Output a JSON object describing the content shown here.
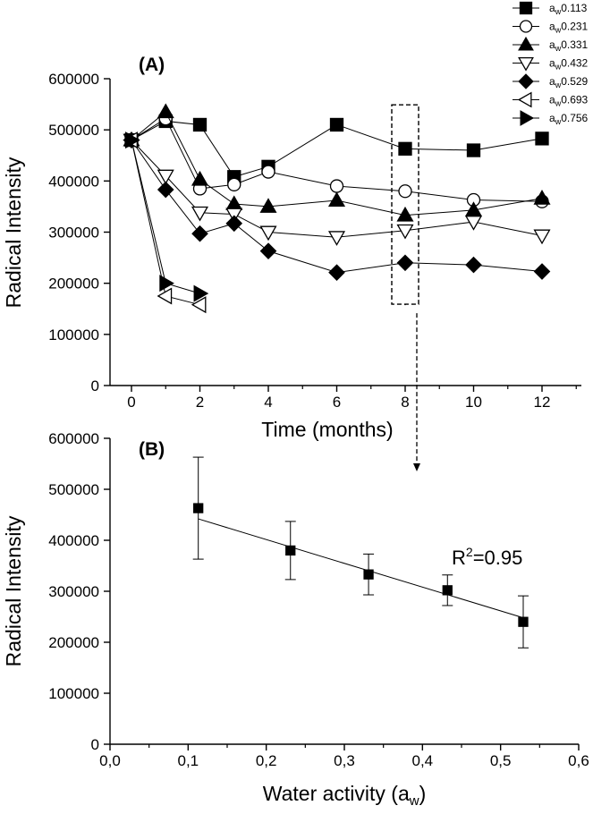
{
  "chart_data": [
    {
      "panel": "(A)",
      "type": "line",
      "xlabel": "Time (months)",
      "ylabel": "Radical Intensity",
      "xlim": [
        -0.5,
        13.5
      ],
      "ylim": [
        0,
        600000
      ],
      "xticks": [
        0,
        2,
        4,
        6,
        8,
        10,
        12
      ],
      "yticks": [
        0,
        100000,
        200000,
        300000,
        400000,
        500000,
        600000
      ],
      "tick_labels_x": [
        "0",
        "2",
        "4",
        "6",
        "8",
        "10",
        "12"
      ],
      "tick_labels_y": [
        "0",
        "100000",
        "200000",
        "300000",
        "400000",
        "500000",
        "600000"
      ],
      "grid": false,
      "legend_position": "top-right",
      "series": [
        {
          "name": "aw0.113",
          "prefix": "a",
          "sub": "w",
          "value_label": "0.113",
          "marker": "square-filled",
          "x": [
            0,
            1,
            2,
            3,
            4,
            6,
            8,
            10,
            12
          ],
          "y": [
            480000,
            517000,
            510000,
            408000,
            428000,
            510000,
            463000,
            460000,
            483000
          ]
        },
        {
          "name": "aw0.231",
          "prefix": "a",
          "sub": "w",
          "value_label": "0.231",
          "marker": "circle-open",
          "x": [
            0,
            1,
            2,
            3,
            4,
            6,
            8,
            10,
            12
          ],
          "y": [
            480000,
            522000,
            385000,
            393000,
            418000,
            390000,
            380000,
            363000,
            360000
          ]
        },
        {
          "name": "aw0.331",
          "prefix": "a",
          "sub": "w",
          "value_label": "0.331",
          "marker": "triangle-up-filled",
          "x": [
            0,
            1,
            2,
            3,
            4,
            6,
            8,
            10,
            12
          ],
          "y": [
            480000,
            535000,
            403000,
            355000,
            350000,
            362000,
            333000,
            343000,
            366000
          ]
        },
        {
          "name": "aw0.432",
          "prefix": "a",
          "sub": "w",
          "value_label": "0.432",
          "marker": "triangle-down-open",
          "x": [
            0,
            1,
            2,
            3,
            4,
            6,
            8,
            10,
            12
          ],
          "y": [
            480000,
            410000,
            338000,
            335000,
            300000,
            290000,
            303000,
            320000,
            293000
          ]
        },
        {
          "name": "aw0.529",
          "prefix": "a",
          "sub": "w",
          "value_label": "0.529",
          "marker": "diamond-filled",
          "x": [
            0,
            1,
            2,
            3,
            4,
            6,
            8,
            10,
            12
          ],
          "y": [
            480000,
            383000,
            297000,
            317000,
            263000,
            221000,
            240000,
            236000,
            223000
          ]
        },
        {
          "name": "aw0.693",
          "prefix": "a",
          "sub": "w",
          "value_label": "0.693",
          "marker": "triangle-left-open",
          "x": [
            0,
            1,
            2
          ],
          "y": [
            480000,
            175000,
            158000
          ]
        },
        {
          "name": "aw0.756",
          "prefix": "a",
          "sub": "w",
          "value_label": "0.756",
          "marker": "triangle-right-filled",
          "x": [
            0,
            1,
            2
          ],
          "y": [
            480000,
            200000,
            180000
          ]
        }
      ],
      "annotation": {
        "type": "dashed-box",
        "x_value": 8,
        "y_range": [
          180000,
          500000
        ],
        "arrow_to_panel": "(B)"
      }
    },
    {
      "panel": "(B)",
      "type": "scatter",
      "xlabel": "Water activity (aw)",
      "xlabel_main": "Water activity (a",
      "xlabel_sub": "w",
      "xlabel_close": ")",
      "ylabel": "Radical Intensity",
      "xlim": [
        0.0,
        0.6
      ],
      "ylim": [
        0,
        600000
      ],
      "xticks": [
        0.0,
        0.1,
        0.2,
        0.3,
        0.4,
        0.5,
        0.6
      ],
      "yticks": [
        0,
        100000,
        200000,
        300000,
        400000,
        500000,
        600000
      ],
      "tick_labels_x": [
        "0,0",
        "0,1",
        "0,2",
        "0,3",
        "0,4",
        "0,5",
        "0,6"
      ],
      "tick_labels_y": [
        "0",
        "100000",
        "200000",
        "300000",
        "400000",
        "500000",
        "600000"
      ],
      "grid": false,
      "points": {
        "x": [
          0.113,
          0.231,
          0.331,
          0.432,
          0.529
        ],
        "y": [
          463000,
          380000,
          333000,
          302000,
          240000
        ],
        "err": [
          100000,
          57000,
          40000,
          30000,
          51000
        ]
      },
      "fit_line": {
        "x": [
          0.113,
          0.529
        ],
        "y": [
          442000,
          248000
        ]
      },
      "annotation_text": "R2=0.95",
      "annotation_prefix": "R",
      "annotation_sup": "2",
      "annotation_rest": "=0.95"
    }
  ]
}
